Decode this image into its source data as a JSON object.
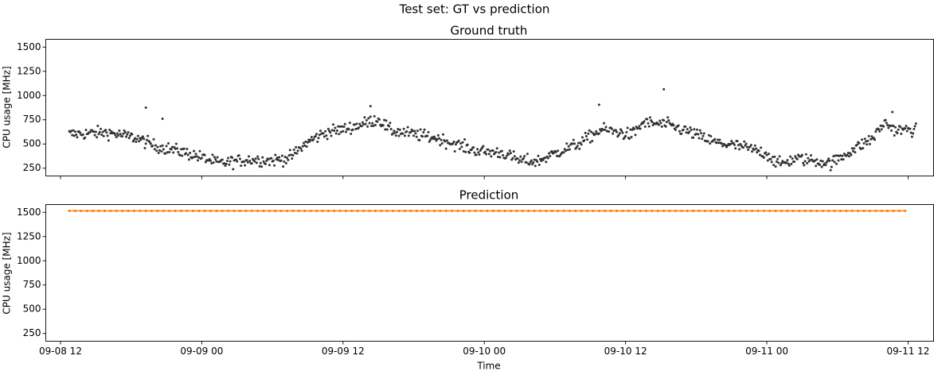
{
  "figure": {
    "suptitle": "Test set: GT vs prediction"
  },
  "chart_data": [
    {
      "id": "ground-truth",
      "type": "scatter",
      "title": "Ground truth",
      "xlabel": "",
      "ylabel": "CPU usage [MHz]",
      "x_type": "datetime",
      "xlim": [
        "2023-09-08T10:45",
        "2023-09-11T14:10"
      ],
      "ylim": [
        170,
        1580
      ],
      "yticks": [
        250,
        500,
        750,
        1000,
        1250,
        1500
      ],
      "xticks": [
        "2023-09-08T12:00",
        "2023-09-09T00:00",
        "2023-09-09T12:00",
        "2023-09-10T00:00",
        "2023-09-10T12:00",
        "2023-09-11T00:00",
        "2023-09-11T12:00"
      ],
      "xtick_labels": [
        "",
        "",
        "",
        "",
        "",
        "",
        ""
      ],
      "grid": false,
      "color": "#333333",
      "x_start": "2023-09-08T12:45",
      "x_end": "2023-09-11T12:40",
      "trend_knots": [
        [
          "2023-09-08T12:45",
          600
        ],
        [
          "2023-09-08T16:00",
          620
        ],
        [
          "2023-09-08T18:30",
          560
        ],
        [
          "2023-09-08T20:00",
          480
        ],
        [
          "2023-09-08T22:00",
          430
        ],
        [
          "2023-09-08T23:30",
          380
        ],
        [
          "2023-09-09T01:30",
          300
        ],
        [
          "2023-09-09T04:00",
          340
        ],
        [
          "2023-09-09T06:00",
          330
        ],
        [
          "2023-09-09T07:30",
          360
        ],
        [
          "2023-09-09T09:00",
          520
        ],
        [
          "2023-09-09T10:30",
          620
        ],
        [
          "2023-09-09T12:00",
          650
        ],
        [
          "2023-09-09T13:30",
          700
        ],
        [
          "2023-09-09T15:00",
          760
        ],
        [
          "2023-09-09T16:00",
          640
        ],
        [
          "2023-09-09T18:00",
          600
        ],
        [
          "2023-09-09T20:00",
          560
        ],
        [
          "2023-09-09T21:30",
          500
        ],
        [
          "2023-09-09T23:00",
          440
        ],
        [
          "2023-09-10T00:00",
          420
        ],
        [
          "2023-09-10T01:30",
          410
        ],
        [
          "2023-09-10T03:00",
          330
        ],
        [
          "2023-09-10T04:30",
          320
        ],
        [
          "2023-09-10T06:30",
          430
        ],
        [
          "2023-09-10T08:00",
          500
        ],
        [
          "2023-09-10T09:00",
          580
        ],
        [
          "2023-09-10T10:00",
          650
        ],
        [
          "2023-09-10T11:30",
          620
        ],
        [
          "2023-09-10T12:30",
          590
        ],
        [
          "2023-09-10T13:30",
          720
        ],
        [
          "2023-09-10T15:30",
          700
        ],
        [
          "2023-09-10T17:30",
          620
        ],
        [
          "2023-09-10T19:30",
          520
        ],
        [
          "2023-09-10T22:00",
          470
        ],
        [
          "2023-09-11T00:00",
          400
        ],
        [
          "2023-09-11T01:00",
          290
        ],
        [
          "2023-09-11T02:30",
          350
        ],
        [
          "2023-09-11T04:30",
          320
        ],
        [
          "2023-09-11T05:30",
          300
        ],
        [
          "2023-09-11T07:00",
          420
        ],
        [
          "2023-09-11T09:00",
          560
        ],
        [
          "2023-09-11T10:00",
          720
        ],
        [
          "2023-09-11T11:00",
          640
        ],
        [
          "2023-09-11T12:40",
          650
        ]
      ],
      "outliers": [
        [
          "2023-09-08T19:15",
          875
        ],
        [
          "2023-09-08T20:40",
          760
        ],
        [
          "2023-09-09T14:20",
          890
        ],
        [
          "2023-09-10T15:15",
          1065
        ],
        [
          "2023-09-10T09:45",
          905
        ],
        [
          "2023-09-11T10:40",
          830
        ]
      ]
    },
    {
      "id": "prediction",
      "type": "line",
      "title": "Prediction",
      "xlabel": "Time",
      "ylabel": "CPU usage [MHz]",
      "x_type": "datetime",
      "xlim": [
        "2023-09-08T10:45",
        "2023-09-11T14:10"
      ],
      "ylim": [
        170,
        1580
      ],
      "yticks": [
        250,
        500,
        750,
        1000,
        1250,
        1500
      ],
      "xticks": [
        "2023-09-08T12:00",
        "2023-09-09T00:00",
        "2023-09-09T12:00",
        "2023-09-10T00:00",
        "2023-09-10T12:00",
        "2023-09-11T00:00",
        "2023-09-11T12:00"
      ],
      "xtick_labels": [
        "09-08 12",
        "09-09 00",
        "09-09 12",
        "09-10 00",
        "09-10 12",
        "09-11 00",
        "09-11 12"
      ],
      "grid": false,
      "color": "#ff7f0e",
      "marker": "dot",
      "x_start": "2023-09-08T12:45",
      "x_end": "2023-09-11T11:50",
      "value": 1515
    }
  ]
}
